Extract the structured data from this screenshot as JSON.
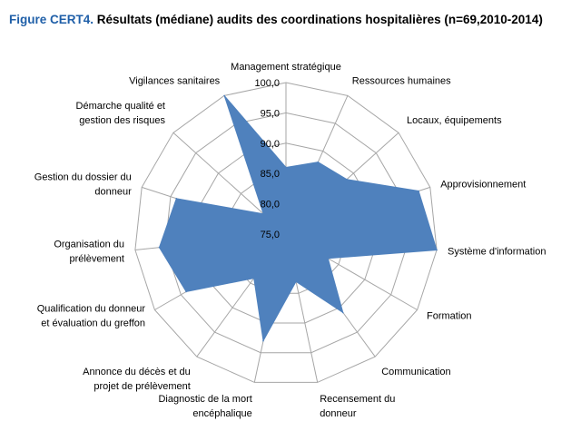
{
  "figure": {
    "number": "Figure CERT4.",
    "title": "Résultats (médiane) audits des coordinations hospitalières (n=69,2010-2014)"
  },
  "chart_data": {
    "type": "radar",
    "categories": [
      [
        "Management stratégique"
      ],
      [
        "Ressources humaines"
      ],
      [
        "Locaux, équipements"
      ],
      [
        "Approvisionnement"
      ],
      [
        "Système d'information"
      ],
      [
        "Formation"
      ],
      [
        "Communication"
      ],
      [
        "Recensement du",
        "donneur"
      ],
      [
        "Diagnostic de la mort",
        "encéphalique"
      ],
      [
        "Annonce du décès et du",
        "projet de prélèvement"
      ],
      [
        "Qualification du donneur",
        "et évaluation du greffon"
      ],
      [
        "Organisation du",
        "prélèvement"
      ],
      [
        "Gestion du dossier du",
        "donneur"
      ],
      [
        "Démarche qualité et",
        "gestion des risques"
      ],
      [
        "Vigilances sanitaires"
      ]
    ],
    "values": [
      86.0,
      88.0,
      88.5,
      98.0,
      100.0,
      83.0,
      91.0,
      83.0,
      93.0,
      84.0,
      94.0,
      96.0,
      94.0,
      80.0,
      100.0
    ],
    "rlim": [
      75,
      100
    ],
    "ticks": [
      "75,0",
      "80,0",
      "85,0",
      "90,0",
      "95,0",
      "100,0"
    ],
    "tick_values": [
      75,
      80,
      85,
      90,
      95,
      100
    ],
    "series_color": "#4f81bd",
    "grid_color": "#a6a6a6",
    "grid": true,
    "legend": "none"
  }
}
